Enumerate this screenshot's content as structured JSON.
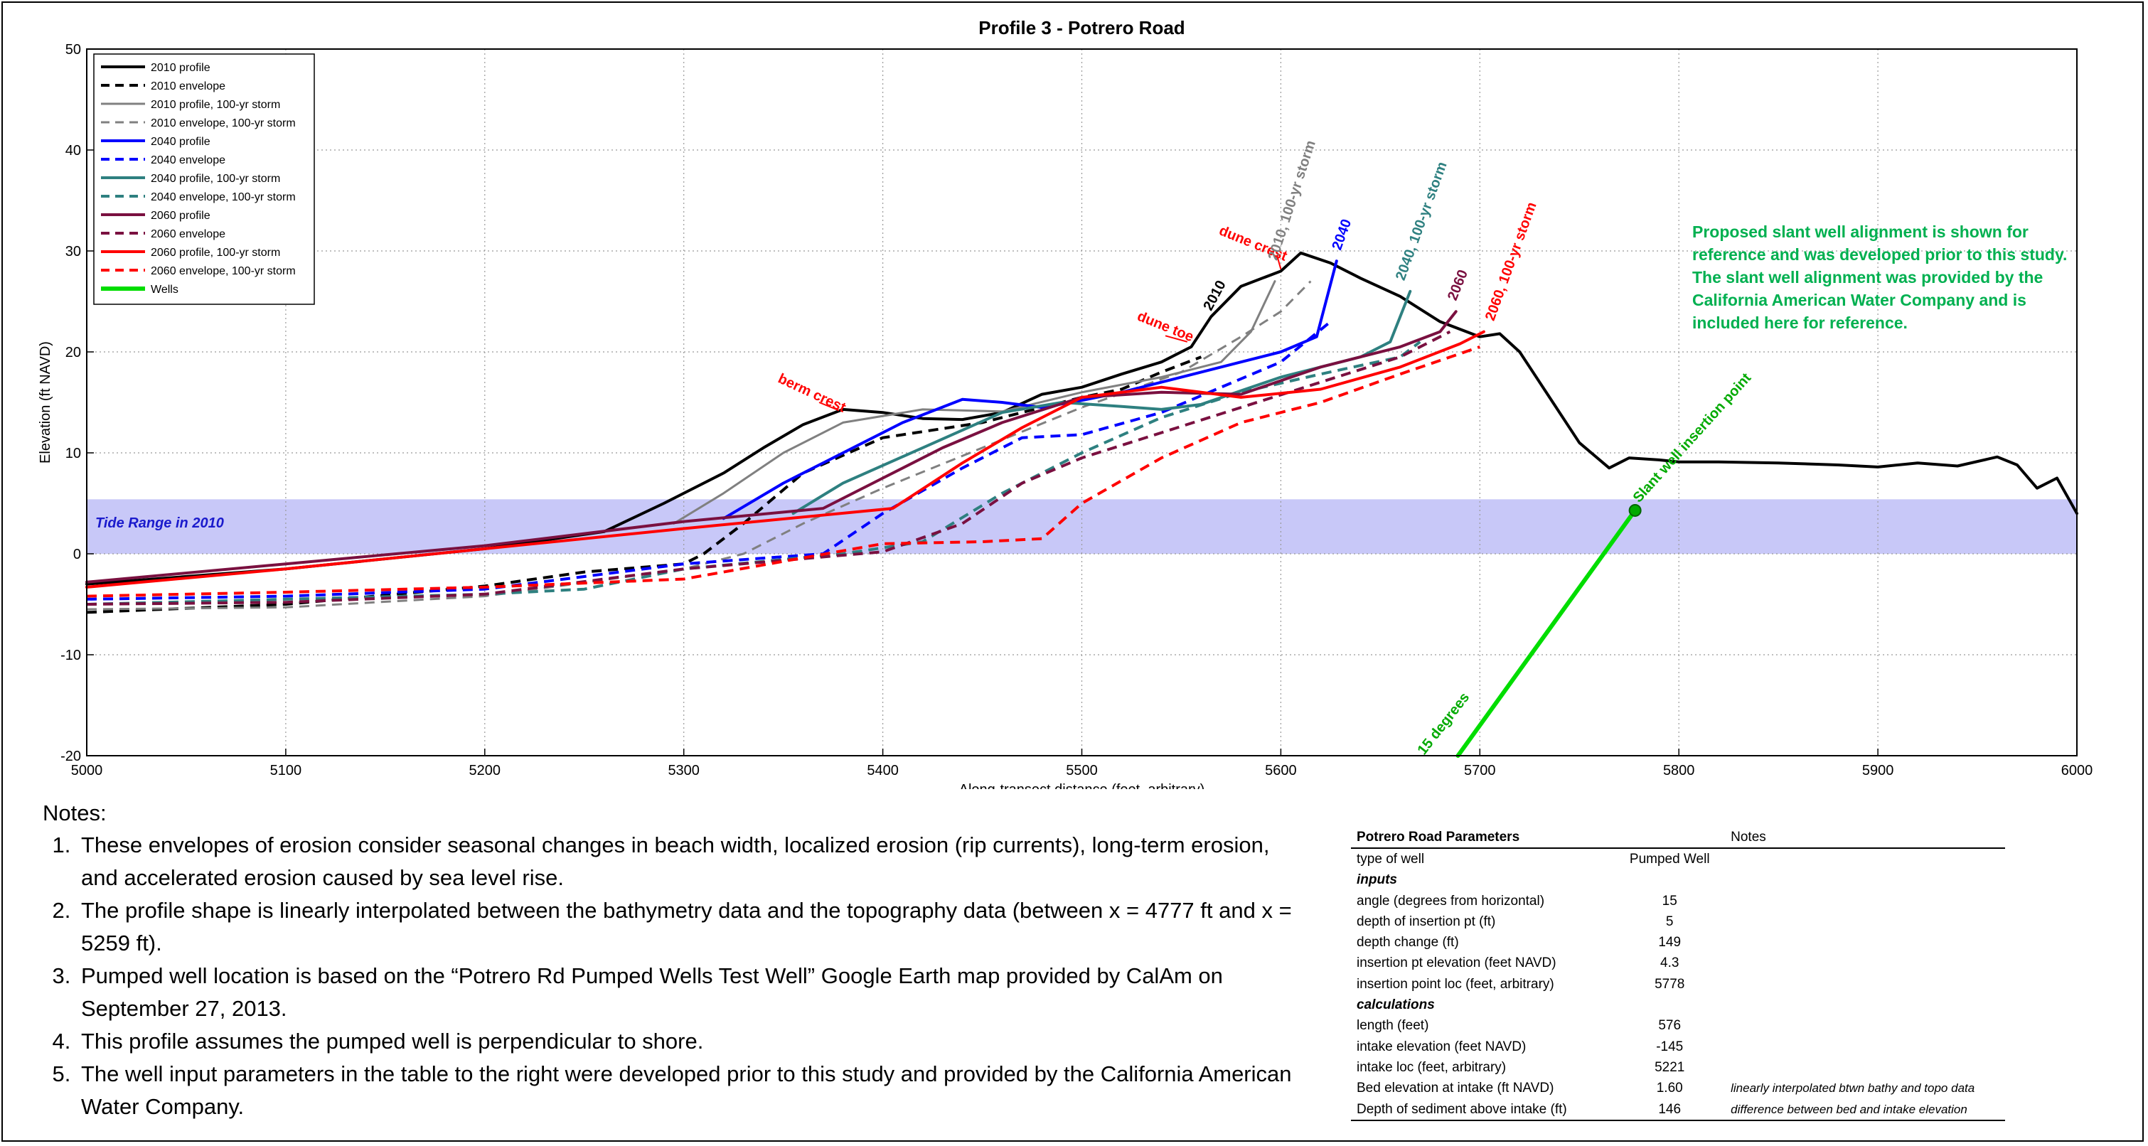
{
  "chart_data": {
    "type": "line",
    "title": "Profile 3 - Potrero Road",
    "xlabel": "Along-transect distance (feet, arbitrary)",
    "ylabel": "Elevation (ft NAVD)",
    "xlim": [
      5000,
      6000
    ],
    "ylim": [
      -20,
      50
    ],
    "xticks": [
      5000,
      5100,
      5200,
      5300,
      5400,
      5500,
      5600,
      5700,
      5800,
      5900,
      6000
    ],
    "yticks": [
      -20,
      -10,
      0,
      10,
      20,
      30,
      40,
      50
    ],
    "grid": true,
    "legend_position": "top-left",
    "tide_band": {
      "label": "Tide Range in 2010",
      "ymin": 0,
      "ymax": 5.4,
      "color": "#c8c8f8"
    },
    "series": [
      {
        "name": "2010 profile",
        "color": "#000000",
        "dash": "solid",
        "width": 4,
        "x": [
          5000,
          5100,
          5200,
          5260,
          5290,
          5320,
          5340,
          5360,
          5380,
          5400,
          5420,
          5440,
          5460,
          5480,
          5500,
          5520,
          5540,
          5555,
          5565,
          5580,
          5600,
          5610,
          5625,
          5640,
          5660,
          5680,
          5700,
          5710,
          5720,
          5735,
          5750,
          5765,
          5775,
          5790,
          5800,
          5820,
          5850,
          5880,
          5900,
          5920,
          5940,
          5960,
          5970,
          5980,
          5990,
          6000
        ],
        "y": [
          -3,
          -1.5,
          0.5,
          2.2,
          5,
          8,
          10.5,
          12.8,
          14.3,
          14,
          13.4,
          13.3,
          14,
          15.8,
          16.5,
          17.8,
          19,
          20.5,
          23.5,
          26.5,
          28,
          29.8,
          28.8,
          27.3,
          25.5,
          23,
          21.5,
          21.8,
          20,
          15.5,
          11,
          8.5,
          9.5,
          9.3,
          9.1,
          9.1,
          9,
          8.8,
          8.6,
          9,
          8.7,
          9.6,
          8.8,
          6.5,
          7.5,
          4
        ]
      },
      {
        "name": "2010 envelope",
        "color": "#000000",
        "dash": "dashed",
        "width": 4,
        "x": [
          5000,
          5100,
          5200,
          5250,
          5300,
          5310,
          5330,
          5360,
          5400,
          5450,
          5500,
          5520,
          5540,
          5560
        ],
        "y": [
          -5.8,
          -5,
          -3.2,
          -1.8,
          -1,
          0,
          3,
          8,
          11.5,
          13,
          15.5,
          16.3,
          18,
          19.5
        ]
      },
      {
        "name": "2010 profile, 100-yr storm",
        "color": "#808080",
        "dash": "solid",
        "width": 3,
        "x": [
          5295,
          5320,
          5350,
          5380,
          5420,
          5460,
          5500,
          5540,
          5570,
          5585,
          5597
        ],
        "y": [
          3,
          6,
          10,
          13,
          14.3,
          14.1,
          16,
          17.5,
          19,
          22,
          27
        ]
      },
      {
        "name": "2010 envelope, 100-yr storm",
        "color": "#808080",
        "dash": "dashed",
        "width": 3,
        "x": [
          5000,
          5100,
          5200,
          5300,
          5330,
          5360,
          5400,
          5450,
          5500,
          5550,
          5580,
          5600,
          5615
        ],
        "y": [
          -5.5,
          -5.3,
          -4.2,
          -1.5,
          0,
          3,
          6.5,
          10.5,
          14.5,
          18,
          21.5,
          24,
          27
        ]
      },
      {
        "name": "2040 profile",
        "color": "#0000ff",
        "dash": "solid",
        "width": 4,
        "x": [
          5320,
          5350,
          5380,
          5410,
          5440,
          5460,
          5480,
          5500,
          5520,
          5540,
          5560,
          5580,
          5600,
          5618,
          5628
        ],
        "y": [
          3.5,
          7,
          10,
          13,
          15.3,
          15,
          14.5,
          15.2,
          16,
          17,
          18,
          19,
          20,
          21.5,
          29
        ]
      },
      {
        "name": "2040 envelope",
        "color": "#0000ff",
        "dash": "dashed",
        "width": 4,
        "x": [
          5000,
          5100,
          5200,
          5300,
          5370,
          5400,
          5440,
          5470,
          5500,
          5540,
          5570,
          5600,
          5625
        ],
        "y": [
          -4.5,
          -4.2,
          -3.5,
          -1,
          0,
          4,
          8.5,
          11.5,
          11.8,
          14,
          16.5,
          19,
          23
        ]
      },
      {
        "name": "2040 profile, 100-yr storm",
        "color": "#2e8080",
        "dash": "solid",
        "width": 4,
        "x": [
          5355,
          5380,
          5420,
          5460,
          5490,
          5520,
          5540,
          5560,
          5600,
          5640,
          5655,
          5665
        ],
        "y": [
          4,
          7,
          10.5,
          14,
          15,
          14.6,
          14.3,
          14.8,
          17.5,
          19.5,
          21,
          26
        ]
      },
      {
        "name": "2040 envelope, 100-yr storm",
        "color": "#2e8080",
        "dash": "dashed",
        "width": 4,
        "x": [
          5000,
          5100,
          5200,
          5250,
          5300,
          5380,
          5420,
          5460,
          5500,
          5540,
          5580,
          5620,
          5660,
          5670
        ],
        "y": [
          -5,
          -4.5,
          -4,
          -3.5,
          -1.5,
          0,
          1.2,
          6,
          10,
          13.5,
          16,
          17.8,
          19.5,
          21
        ]
      },
      {
        "name": "2060 profile",
        "color": "#7a1040",
        "dash": "solid",
        "width": 4,
        "x": [
          5000,
          5100,
          5200,
          5300,
          5370,
          5400,
          5430,
          5460,
          5500,
          5540,
          5580,
          5620,
          5660,
          5680,
          5688
        ],
        "y": [
          -2.8,
          -1,
          0.8,
          3.2,
          4.5,
          7.5,
          10.5,
          13,
          15.5,
          16,
          15.8,
          18.5,
          20.5,
          22,
          24
        ]
      },
      {
        "name": "2060 envelope",
        "color": "#7a1040",
        "dash": "dashed",
        "width": 4,
        "x": [
          5000,
          5100,
          5200,
          5300,
          5400,
          5440,
          5470,
          5500,
          5540,
          5580,
          5620,
          5660,
          5685
        ],
        "y": [
          -5,
          -4.8,
          -4,
          -1.5,
          0.2,
          3,
          7,
          9.5,
          12,
          14.5,
          17,
          19.5,
          22
        ]
      },
      {
        "name": "2060 profile, 100-yr storm",
        "color": "#ff0000",
        "dash": "solid",
        "width": 4,
        "x": [
          5000,
          5100,
          5200,
          5300,
          5405,
          5440,
          5470,
          5500,
          5540,
          5580,
          5620,
          5660,
          5690,
          5702
        ],
        "y": [
          -3.3,
          -1.5,
          0.5,
          2.5,
          4.5,
          9,
          12.5,
          15.5,
          16.5,
          15.5,
          16.3,
          18.5,
          20.8,
          22
        ]
      },
      {
        "name": "2060 envelope, 100-yr storm",
        "color": "#ff0000",
        "dash": "dashed",
        "width": 4,
        "x": [
          5000,
          5100,
          5200,
          5300,
          5400,
          5450,
          5480,
          5500,
          5540,
          5580,
          5620,
          5660,
          5700
        ],
        "y": [
          -4.2,
          -3.8,
          -3.3,
          -2.5,
          1,
          1.2,
          1.5,
          5,
          9.5,
          13,
          15,
          17.8,
          20.5
        ]
      },
      {
        "name": "Wells",
        "color": "#00dd00",
        "dash": "solid",
        "width": 6,
        "x": [
          5778,
          5689
        ],
        "y": [
          4.3,
          -20
        ]
      }
    ],
    "annotations": [
      {
        "text": "berm crest",
        "color": "#ff0000",
        "x": 5380,
        "y": 14
      },
      {
        "text": "dune toe",
        "color": "#ff0000",
        "x": 5555,
        "y": 21
      },
      {
        "text": "dune crest",
        "color": "#ff0000",
        "x": 5602,
        "y": 29
      },
      {
        "text": "2010",
        "color": "#000000",
        "x": 5565,
        "y": 24
      },
      {
        "text": "2010, 100-yr storm",
        "color": "#808080",
        "x": 5598,
        "y": 29
      },
      {
        "text": "2040",
        "color": "#0000ff",
        "x": 5630,
        "y": 30
      },
      {
        "text": "2040, 100-yr storm",
        "color": "#2e8080",
        "x": 5662,
        "y": 27
      },
      {
        "text": "2060",
        "color": "#7a1040",
        "x": 5688,
        "y": 25
      },
      {
        "text": "2060, 100-yr storm",
        "color": "#ff0000",
        "x": 5707,
        "y": 23
      },
      {
        "text": "Slant well insertion point",
        "color": "#00aa00",
        "x": 5780,
        "y": 5
      },
      {
        "text": "15 degrees",
        "color": "#00aa00",
        "x": 5672,
        "y": -20
      }
    ],
    "insertion_point": {
      "x": 5778,
      "y": 4.3
    },
    "callout": "Proposed slant well alignment is shown for reference and was developed prior to this study. The slant well alignment was provided by the California American Water Company and is included here for reference.",
    "callout_color": "#00b050"
  },
  "notes": {
    "heading": "Notes:",
    "items": [
      "These envelopes of erosion consider seasonal changes in beach width, localized erosion (rip currents), long-term erosion, and accelerated erosion caused by sea level rise.",
      "The profile shape is linearly interpolated between the bathymetry data and the topography data (between x = 4777 ft and x = 5259 ft).",
      "Pumped well location is based on the “Potrero Rd Pumped Wells Test Well” Google Earth map provided by CalAm on September 27, 2013.",
      "This profile assumes the pumped well is perpendicular to shore.",
      "The well input parameters in the table to the right were developed prior to this study and provided by the California American Water Company."
    ]
  },
  "params": {
    "header": {
      "title": "Potrero Road Parameters",
      "notes": "Notes"
    },
    "type_label": "type of well",
    "type_value": "Pumped Well",
    "inputs_label": "inputs",
    "calculations_label": "calculations",
    "rows": [
      {
        "label": "angle (degrees from horizontal)",
        "value": "15",
        "note": ""
      },
      {
        "label": "depth of insertion pt (ft)",
        "value": "5",
        "note": ""
      },
      {
        "label": "depth change (ft)",
        "value": "149",
        "note": ""
      },
      {
        "label": "insertion pt elevation (feet NAVD)",
        "value": "4.3",
        "note": ""
      },
      {
        "label": "insertion point loc (feet, arbitrary)",
        "value": "5778",
        "note": ""
      },
      {
        "label": "length (feet)",
        "value": "576",
        "note": ""
      },
      {
        "label": "intake elevation (feet NAVD)",
        "value": "-145",
        "note": ""
      },
      {
        "label": "intake loc (feet, arbitrary)",
        "value": "5221",
        "note": ""
      },
      {
        "label": "Bed elevation at intake (ft NAVD)",
        "value": "1.60",
        "note": "linearly interpolated btwn bathy and topo data"
      },
      {
        "label": "Depth of sediment above intake (ft)",
        "value": "146",
        "note": "difference between bed and intake elevation"
      }
    ]
  }
}
